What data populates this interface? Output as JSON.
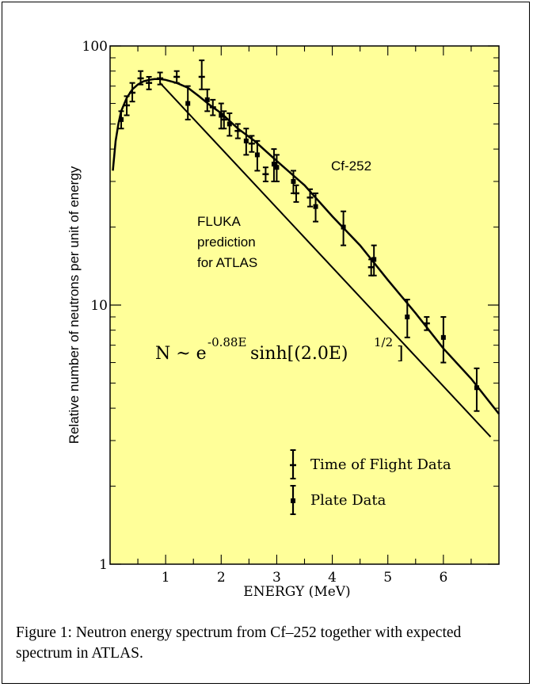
{
  "chart_data": {
    "type": "scatter",
    "title": "",
    "xlabel": "ENERGY (MeV)",
    "ylabel": "Relative number of neutrons per unit of energy",
    "xlim": [
      0,
      7
    ],
    "ylim": [
      1,
      100
    ],
    "y_scale": "log",
    "x_ticks": [
      1,
      2,
      3,
      4,
      5,
      6
    ],
    "y_ticks": [
      {
        "value": 1,
        "label": "1"
      },
      {
        "value": 10,
        "label": "10"
      },
      {
        "value": 100,
        "label": "100"
      }
    ],
    "background_color": "#ffff99",
    "annotations": {
      "cf_label": "Cf-252",
      "fluka_line1": "FLUKA",
      "fluka_line2": "prediction",
      "fluka_line3": "for ATLAS",
      "formula_main": "N ~ e",
      "formula_exp": "-0.88E",
      "formula_mid": "sinh[(2.0E)",
      "formula_exp2": "1/2",
      "formula_end": "]"
    },
    "legend": [
      {
        "label": "Time of Flight Data",
        "marker": "plus"
      },
      {
        "label": "Plate Data",
        "marker": "square"
      }
    ],
    "series": [
      {
        "name": "Time of Flight Data",
        "points": [
          {
            "x": 0.3,
            "y": 59,
            "err": [
              5,
              5
            ]
          },
          {
            "x": 0.4,
            "y": 66,
            "err": [
              5,
              6
            ]
          },
          {
            "x": 0.55,
            "y": 75,
            "err": [
              4,
              5
            ]
          },
          {
            "x": 0.7,
            "y": 72,
            "err": [
              4,
              4
            ]
          },
          {
            "x": 0.9,
            "y": 75,
            "err": [
              4,
              4
            ]
          },
          {
            "x": 1.2,
            "y": 76,
            "err": [
              4,
              4
            ]
          },
          {
            "x": 1.65,
            "y": 76,
            "err": [
              8,
              12
            ]
          },
          {
            "x": 1.85,
            "y": 58,
            "err": [
              4,
              4
            ]
          },
          {
            "x": 2.05,
            "y": 52,
            "err": [
              4,
              4
            ]
          },
          {
            "x": 2.3,
            "y": 47,
            "err": [
              3,
              3
            ]
          },
          {
            "x": 2.55,
            "y": 42,
            "err": [
              3,
              3
            ]
          },
          {
            "x": 2.8,
            "y": 32,
            "err": [
              2,
              2
            ]
          },
          {
            "x": 3.35,
            "y": 27,
            "err": [
              2,
              2
            ]
          },
          {
            "x": 3.6,
            "y": 26,
            "err": [
              2,
              2
            ]
          },
          {
            "x": 4.7,
            "y": 14,
            "err": [
              1,
              1
            ]
          },
          {
            "x": 5.7,
            "y": 8.5,
            "err": [
              0.5,
              0.5
            ]
          }
        ]
      },
      {
        "name": "Plate Data",
        "points": [
          {
            "x": 0.2,
            "y": 52,
            "err": [
              4,
              4
            ]
          },
          {
            "x": 1.4,
            "y": 60,
            "err": [
              8,
              10
            ]
          },
          {
            "x": 1.75,
            "y": 62,
            "err": [
              6,
              6
            ]
          },
          {
            "x": 2.0,
            "y": 54,
            "err": [
              6,
              6
            ]
          },
          {
            "x": 2.15,
            "y": 50,
            "err": [
              5,
              5
            ]
          },
          {
            "x": 2.45,
            "y": 43,
            "err": [
              5,
              5
            ]
          },
          {
            "x": 2.65,
            "y": 38,
            "err": [
              5,
              5
            ]
          },
          {
            "x": 2.95,
            "y": 35,
            "err": [
              5,
              5
            ]
          },
          {
            "x": 3.0,
            "y": 34,
            "err": [
              4,
              4
            ]
          },
          {
            "x": 3.3,
            "y": 30,
            "err": [
              3,
              3
            ]
          },
          {
            "x": 3.7,
            "y": 24,
            "err": [
              3,
              3
            ]
          },
          {
            "x": 4.2,
            "y": 20,
            "err": [
              3,
              3
            ]
          },
          {
            "x": 4.75,
            "y": 15,
            "err": [
              2,
              2
            ]
          },
          {
            "x": 5.35,
            "y": 9,
            "err": [
              1.5,
              1.5
            ]
          },
          {
            "x": 6.0,
            "y": 7.5,
            "err": [
              1.5,
              1.5
            ]
          },
          {
            "x": 6.6,
            "y": 4.8,
            "err": [
              0.9,
              0.9
            ]
          }
        ]
      }
    ],
    "curves": [
      {
        "name": "Cf-252",
        "x": [
          0.05,
          0.1,
          0.15,
          0.2,
          0.3,
          0.4,
          0.5,
          0.6,
          0.7,
          0.8,
          0.9,
          1.0,
          1.2,
          1.4,
          1.6,
          1.8,
          2.0,
          2.3,
          2.6,
          3.0,
          3.5,
          4.0,
          4.5,
          5.0,
          5.5,
          6.0,
          6.5,
          7.0
        ],
        "y": [
          33,
          43,
          50,
          56,
          63,
          68,
          71,
          73,
          74,
          74.5,
          74.5,
          74,
          72,
          69,
          64,
          59,
          55,
          48,
          43,
          36,
          29,
          22,
          17,
          12.5,
          9.3,
          6.8,
          5.2,
          3.8
        ]
      },
      {
        "name": "FLUKA prediction for ATLAS",
        "x": [
          0.9,
          6.85
        ],
        "y": [
          72,
          3.1
        ]
      }
    ]
  },
  "caption": "Figure 1: Neutron energy spectrum from Cf–252 together with expected spectrum in ATLAS."
}
